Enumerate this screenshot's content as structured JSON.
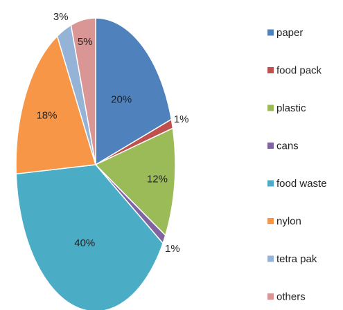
{
  "chart_data": {
    "type": "pie",
    "title": "",
    "legend_position": "right",
    "slices": [
      {
        "label": "paper",
        "value": 20,
        "display": "20%",
        "color": "#4f81bd"
      },
      {
        "label": "food pack",
        "value": 1,
        "display": "1%",
        "color": "#c0504d"
      },
      {
        "label": "plastic",
        "value": 12,
        "display": "12%",
        "color": "#9bbb59"
      },
      {
        "label": "cans",
        "value": 1,
        "display": "1%",
        "color": "#8064a2"
      },
      {
        "label": "food waste",
        "value": 40,
        "display": "40%",
        "color": "#4bacc6"
      },
      {
        "label": "nylon",
        "value": 18,
        "display": "18%",
        "color": "#f79646"
      },
      {
        "label": "tetra pak",
        "value": 3,
        "display": "3%",
        "color": "#95b3d7"
      },
      {
        "label": "others",
        "value": 5,
        "display": "5%",
        "color": "#d99694"
      }
    ]
  }
}
